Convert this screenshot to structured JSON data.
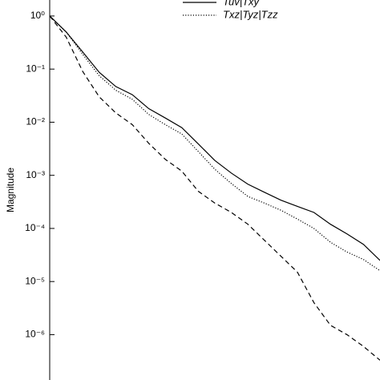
{
  "chart_data": {
    "type": "line",
    "ylabel": "Magnitude",
    "yscale": "log",
    "ylim": [
      1.4e-07,
      2
    ],
    "yticks": [
      {
        "value": 1,
        "label": "10⁰"
      },
      {
        "value": 0.1,
        "label": "10⁻¹"
      },
      {
        "value": 0.01,
        "label": "10⁻²"
      },
      {
        "value": 0.001,
        "label": "10⁻³"
      },
      {
        "value": 0.0001,
        "label": "10⁻⁴"
      },
      {
        "value": 1e-05,
        "label": "10⁻⁵"
      },
      {
        "value": 1e-06,
        "label": "10⁻⁶"
      }
    ],
    "series": [
      {
        "name": "Tuv|Txy",
        "color": "#000000",
        "dash": "solid",
        "values": [
          1,
          0.5,
          0.21,
          0.087,
          0.047,
          0.033,
          0.018,
          0.012,
          0.0079,
          0.0039,
          0.0019,
          0.0011,
          0.00068,
          0.00048,
          0.00034,
          0.00026,
          0.0002,
          0.00012,
          7.9e-05,
          5e-05,
          2.5e-05
        ]
      },
      {
        "name": "Txz|Tyz|Tzz",
        "color": "#000000",
        "dash": "dotted",
        "values": [
          1,
          0.5,
          0.19,
          0.075,
          0.04,
          0.027,
          0.014,
          0.009,
          0.006,
          0.0028,
          0.0013,
          0.0007,
          0.0004,
          0.0003,
          0.00022,
          0.00015,
          0.0001,
          5.5e-05,
          3.6e-05,
          2.6e-05,
          1.6e-05
        ]
      },
      {
        "color": "#000000",
        "dash": "dashed",
        "values": [
          1,
          0.4,
          0.09,
          0.03,
          0.015,
          0.009,
          0.004,
          0.002,
          0.0012,
          0.0005,
          0.0003,
          0.0002,
          0.00012,
          6e-05,
          3e-05,
          1.5e-05,
          4e-06,
          1.5e-06,
          1e-06,
          6e-07,
          3.3e-07
        ]
      }
    ]
  }
}
